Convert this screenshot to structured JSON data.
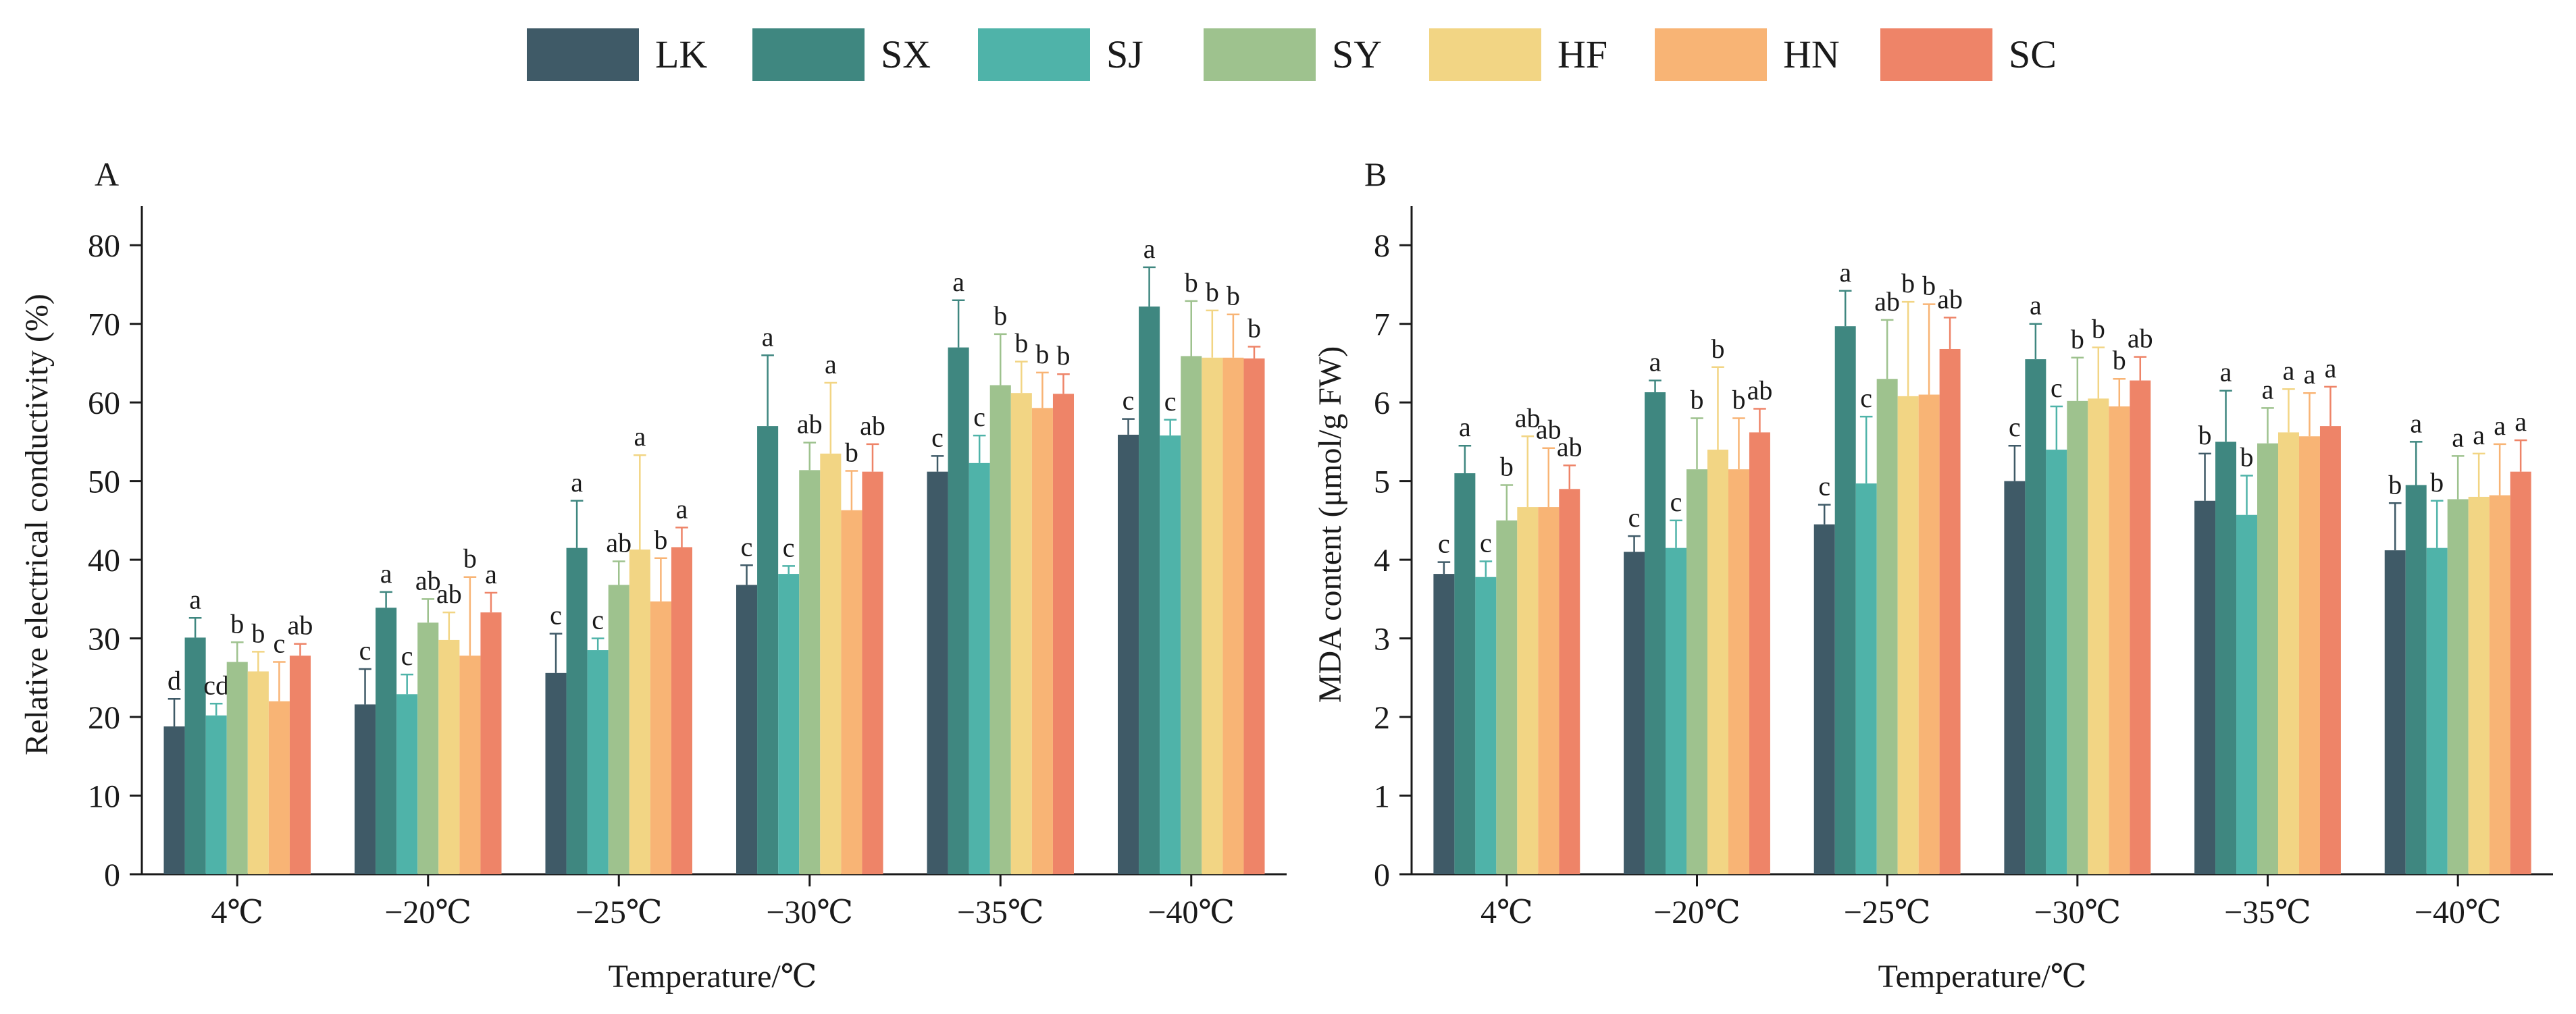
{
  "legend": {
    "series": [
      "LK",
      "SX",
      "SJ",
      "SY",
      "HF",
      "HN",
      "SC"
    ],
    "colors": [
      "#3f5a67",
      "#3f8780",
      "#4fb3a9",
      "#9ec28e",
      "#f2d584",
      "#f8b475",
      "#ee8468"
    ]
  },
  "chart_data": [
    {
      "type": "bar",
      "panel_label": "A",
      "xlabel": "Temperature/℃",
      "ylabel": "Relative electrical conductivity (%)",
      "ylim": [
        0,
        85
      ],
      "yticks": [
        "0",
        "10",
        "20",
        "30",
        "40",
        "50",
        "60",
        "70",
        "80"
      ],
      "categories": [
        "4℃",
        "−20℃",
        "−25℃",
        "−30℃",
        "−35℃",
        "−40℃"
      ],
      "series": [
        {
          "name": "LK",
          "values": [
            18.8,
            21.6,
            25.6,
            36.8,
            51.2,
            55.9
          ],
          "errors": [
            3.5,
            4.5,
            5.0,
            2.5,
            2.0,
            2.0
          ],
          "letters": [
            "d",
            "c",
            "c",
            "c",
            "c",
            "c"
          ]
        },
        {
          "name": "SX",
          "values": [
            30.1,
            33.9,
            41.5,
            57.0,
            67.0,
            72.2
          ],
          "errors": [
            2.5,
            2.0,
            6.0,
            9.0,
            6.0,
            5.0
          ],
          "letters": [
            "a",
            "a",
            "a",
            "a",
            "a",
            "a"
          ]
        },
        {
          "name": "SJ",
          "values": [
            20.2,
            22.9,
            28.5,
            38.2,
            52.3,
            55.8
          ],
          "errors": [
            1.5,
            2.5,
            1.5,
            1.0,
            3.5,
            2.0
          ],
          "letters": [
            "cd",
            "c",
            "c",
            "c",
            "c",
            "c"
          ]
        },
        {
          "name": "SY",
          "values": [
            27.0,
            32.0,
            36.8,
            51.4,
            62.2,
            65.9
          ],
          "errors": [
            2.5,
            3.0,
            3.0,
            3.5,
            6.5,
            7.0
          ],
          "letters": [
            "b",
            "ab",
            "ab",
            "ab",
            "b",
            "b"
          ]
        },
        {
          "name": "HF",
          "values": [
            25.8,
            29.8,
            41.3,
            53.5,
            61.2,
            65.7
          ],
          "errors": [
            2.5,
            3.5,
            12.0,
            9.0,
            4.0,
            6.0
          ],
          "letters": [
            "b",
            "ab",
            "a",
            "a",
            "b",
            "b"
          ]
        },
        {
          "name": "HN",
          "values": [
            22.0,
            27.8,
            34.7,
            46.3,
            59.3,
            65.7
          ],
          "errors": [
            5.0,
            10.0,
            5.5,
            5.0,
            4.5,
            5.5
          ],
          "letters": [
            "c",
            "b",
            "b",
            "b",
            "b",
            "b"
          ]
        },
        {
          "name": "SC",
          "values": [
            27.8,
            33.3,
            41.6,
            51.2,
            61.1,
            65.6
          ],
          "errors": [
            1.5,
            2.5,
            2.5,
            3.5,
            2.5,
            1.5
          ],
          "letters": [
            "ab",
            "a",
            "a",
            "ab",
            "b",
            "b"
          ]
        }
      ]
    },
    {
      "type": "bar",
      "panel_label": "B",
      "xlabel": "Temperature/℃",
      "ylabel": "MDA content (μmol/g FW)",
      "ylim": [
        0,
        8.5
      ],
      "yticks": [
        "0",
        "1",
        "2",
        "3",
        "4",
        "5",
        "6",
        "7",
        "8"
      ],
      "categories": [
        "4℃",
        "−20℃",
        "−25℃",
        "−30℃",
        "−35℃",
        "−40℃"
      ],
      "series": [
        {
          "name": "LK",
          "values": [
            3.82,
            4.1,
            4.45,
            5.0,
            4.75,
            4.12
          ],
          "errors": [
            0.15,
            0.2,
            0.25,
            0.45,
            0.6,
            0.6
          ],
          "letters": [
            "c",
            "c",
            "c",
            "c",
            "b",
            "b"
          ]
        },
        {
          "name": "SX",
          "values": [
            5.1,
            6.13,
            6.97,
            6.55,
            5.5,
            4.95
          ],
          "errors": [
            0.35,
            0.15,
            0.45,
            0.45,
            0.65,
            0.55
          ],
          "letters": [
            "a",
            "a",
            "a",
            "a",
            "a",
            "a"
          ]
        },
        {
          "name": "SJ",
          "values": [
            3.78,
            4.15,
            4.97,
            5.4,
            4.57,
            4.15
          ],
          "errors": [
            0.2,
            0.35,
            0.85,
            0.55,
            0.5,
            0.6
          ],
          "letters": [
            "c",
            "c",
            "c",
            "c",
            "b",
            "b"
          ]
        },
        {
          "name": "SY",
          "values": [
            4.5,
            5.15,
            6.3,
            6.02,
            5.48,
            4.77
          ],
          "errors": [
            0.45,
            0.65,
            0.75,
            0.55,
            0.45,
            0.55
          ],
          "letters": [
            "b",
            "b",
            "ab",
            "b",
            "a",
            "a"
          ]
        },
        {
          "name": "HF",
          "values": [
            4.67,
            5.4,
            6.08,
            6.05,
            5.62,
            4.8
          ],
          "errors": [
            0.9,
            1.05,
            1.2,
            0.65,
            0.55,
            0.55
          ],
          "letters": [
            "ab",
            "b",
            "b",
            "b",
            "a",
            "a"
          ]
        },
        {
          "name": "HN",
          "values": [
            4.67,
            5.15,
            6.1,
            5.95,
            5.57,
            4.82
          ],
          "errors": [
            0.75,
            0.65,
            1.15,
            0.35,
            0.55,
            0.65
          ],
          "letters": [
            "ab",
            "b",
            "b",
            "b",
            "a",
            "a"
          ]
        },
        {
          "name": "SC",
          "values": [
            4.9,
            5.62,
            6.68,
            6.28,
            5.7,
            5.12
          ],
          "errors": [
            0.3,
            0.3,
            0.4,
            0.3,
            0.5,
            0.4
          ],
          "letters": [
            "ab",
            "ab",
            "ab",
            "ab",
            "a",
            "a"
          ]
        }
      ]
    }
  ]
}
